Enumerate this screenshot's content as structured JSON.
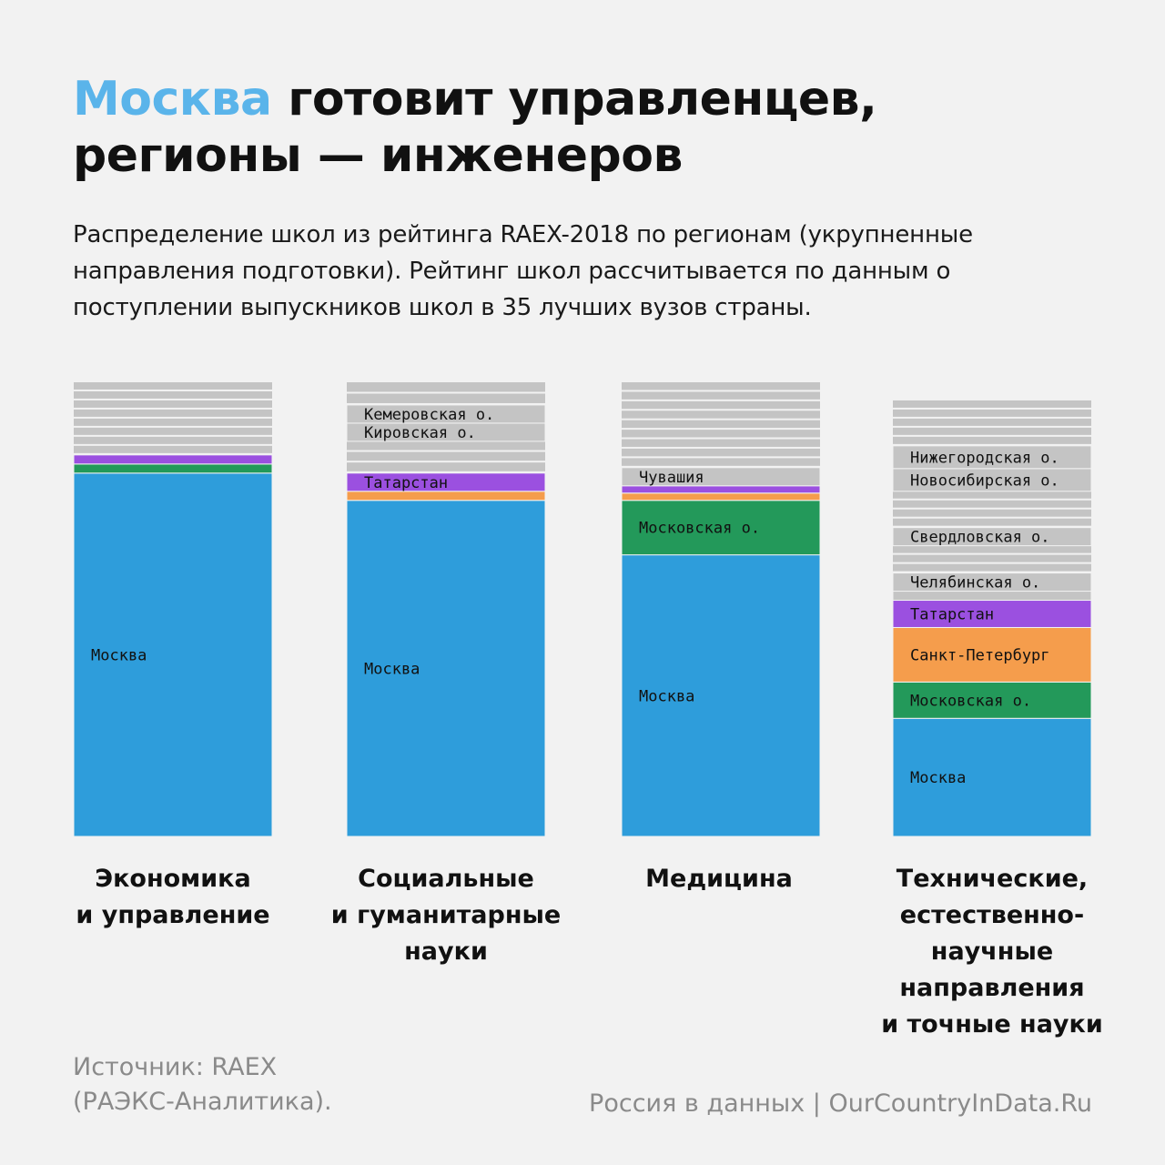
{
  "header": {
    "title_accent": "Москва",
    "title_rest": " готовит управленцев, регионы — инженеров",
    "subtitle": "Распределение школ из рейтинга RAEX-2018 по регионам (укрупненные направления подготовки). Рейтинг школ рассчитывается по данным о поступлении выпускников школ в 35 лучших вузов страны."
  },
  "footer": {
    "source": "Источник: RAEX\n(РАЭКС-Аналитика).",
    "credit": "Россия в данных | OurCountryInData.Ru"
  },
  "colors": {
    "Москва": "#2e9ddb",
    "Московская о.": "#23995a",
    "Санкт-Петербург": "#f59d4c",
    "Татарстан": "#9b50e0",
    "other": "#c4c4c4",
    "background": "#f2f2f2"
  },
  "chart_data": {
    "type": "bar",
    "stacked": true,
    "unit": "share of schools, %",
    "categories": [
      "Экономика\nи управление",
      "Социальные\nи гуманитарные\nнауки",
      "Медицина",
      "Технические,\nестественно-\nнаучные\nнаправления\nи точные науки"
    ],
    "stacks": [
      {
        "category": "Экономика\nи управление",
        "segments": [
          {
            "label": "Москва",
            "value": 80.0,
            "color_key": "Москва",
            "show_label": true
          },
          {
            "label": "Московская о.",
            "value": 2.0,
            "color_key": "Московская о.",
            "show_label": false
          },
          {
            "label": "Татарстан",
            "value": 2.0,
            "color_key": "Татарстан",
            "show_label": false
          },
          {
            "label": "other",
            "value": 16.0,
            "color_key": "other",
            "show_label": false,
            "strips": 8
          }
        ]
      },
      {
        "category": "Социальные\nи гуманитарные\nнауки",
        "segments": [
          {
            "label": "Москва",
            "value": 74.0,
            "color_key": "Москва",
            "show_label": true
          },
          {
            "label": "Санкт-Петербург",
            "value": 2.0,
            "color_key": "Санкт-Петербург",
            "show_label": false
          },
          {
            "label": "Татарстан",
            "value": 4.0,
            "color_key": "Татарстан",
            "show_label": true
          },
          {
            "label": "other",
            "value": 7.0,
            "color_key": "other",
            "show_label": false,
            "strips": 3
          },
          {
            "label": "Кировская о.",
            "value": 4.0,
            "color_key": "other",
            "show_label": true
          },
          {
            "label": "Кемеровская о.",
            "value": 4.0,
            "color_key": "other",
            "show_label": true
          },
          {
            "label": "other",
            "value": 5.0,
            "color_key": "other",
            "show_label": false,
            "strips": 2
          }
        ]
      },
      {
        "category": "Медицина",
        "segments": [
          {
            "label": "Москва",
            "value": 62.0,
            "color_key": "Москва",
            "show_label": true
          },
          {
            "label": "Московская о.",
            "value": 12.0,
            "color_key": "Московская о.",
            "show_label": true
          },
          {
            "label": "Санкт-Петербург",
            "value": 1.6,
            "color_key": "Санкт-Петербург",
            "show_label": false
          },
          {
            "label": "Татарстан",
            "value": 1.6,
            "color_key": "Татарстан",
            "show_label": false
          },
          {
            "label": "Чувашия",
            "value": 4.0,
            "color_key": "other",
            "show_label": true
          },
          {
            "label": "other",
            "value": 18.8,
            "color_key": "other",
            "show_label": false,
            "strips": 9
          }
        ]
      },
      {
        "category": "Технические,\nестественно-\nнаучные\nнаправления\nи точные науки",
        "segments": [
          {
            "label": "Москва",
            "value": 26.0,
            "color_key": "Москва",
            "show_label": true
          },
          {
            "label": "Московская о.",
            "value": 8.0,
            "color_key": "Московская о.",
            "show_label": true
          },
          {
            "label": "Санкт-Петербург",
            "value": 12.0,
            "color_key": "Санкт-Петербург",
            "show_label": true
          },
          {
            "label": "Татарстан",
            "value": 6.0,
            "color_key": "Татарстан",
            "show_label": true
          },
          {
            "label": "other",
            "value": 2.0,
            "color_key": "other",
            "show_label": false,
            "strips": 1
          },
          {
            "label": "Челябинская о.",
            "value": 4.0,
            "color_key": "other",
            "show_label": true
          },
          {
            "label": "other",
            "value": 6.0,
            "color_key": "other",
            "show_label": false,
            "strips": 3
          },
          {
            "label": "Свердловская о.",
            "value": 4.0,
            "color_key": "other",
            "show_label": true
          },
          {
            "label": "other",
            "value": 8.0,
            "color_key": "other",
            "show_label": false,
            "strips": 4
          },
          {
            "label": "Новосибирская о.",
            "value": 5.0,
            "color_key": "other",
            "show_label": true
          },
          {
            "label": "Нижегородская о.",
            "value": 5.0,
            "color_key": "other",
            "show_label": true
          },
          {
            "label": "other",
            "value": 10.0,
            "color_key": "other",
            "show_label": false,
            "strips": 5
          }
        ]
      }
    ],
    "ylim": [
      0,
      100
    ],
    "grid": false,
    "legend": "none"
  }
}
